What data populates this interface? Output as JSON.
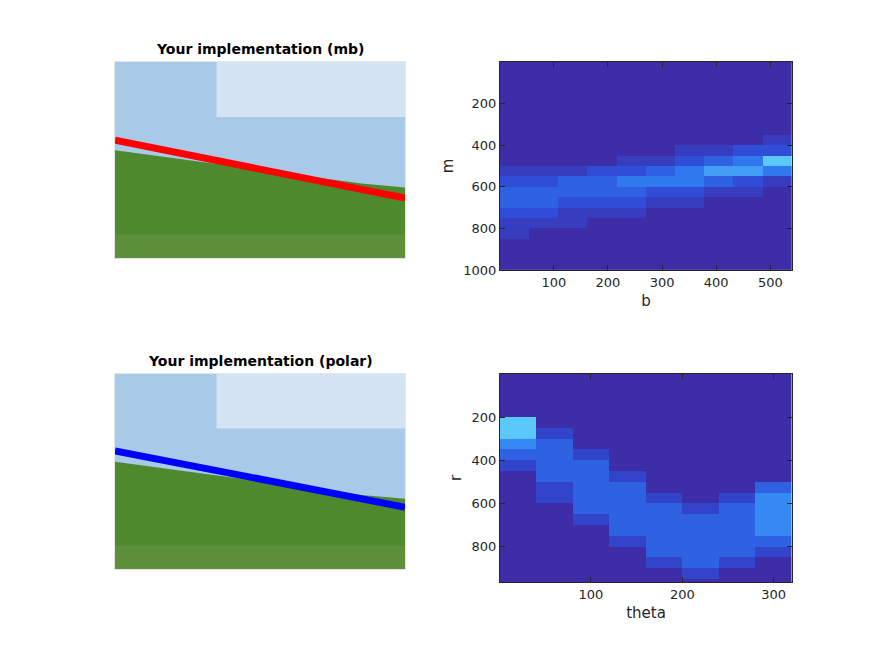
{
  "chart_data": [
    {
      "type": "image",
      "title": "Your implementation (mb)",
      "tick_labels": false,
      "xlim": [
        0,
        540
      ],
      "ylim": [
        363,
        0
      ],
      "x": [
        0,
        540
      ],
      "values": [
        145,
        252
      ],
      "color": "#ff0000"
    },
    {
      "type": "heatmap",
      "xlabel": "b",
      "ylabel": "m",
      "xlim": [
        0.5,
        540
      ],
      "ylim": [
        1000,
        0.5
      ],
      "xticks": [
        100,
        200,
        300,
        400,
        500
      ],
      "yticks": [
        200,
        400,
        600,
        800,
        1000
      ],
      "x": [
        27,
        81,
        135,
        189,
        243,
        297,
        351,
        405,
        459,
        513
      ],
      "y": [
        25,
        75,
        125,
        175,
        225,
        275,
        325,
        375,
        425,
        475,
        525,
        575,
        625,
        675,
        725,
        775,
        825,
        875,
        925,
        975
      ],
      "z": [
        [
          0,
          0,
          0,
          0,
          0,
          0,
          0,
          0,
          0,
          0
        ],
        [
          0,
          0,
          0,
          0,
          0,
          0,
          0,
          0,
          0,
          0
        ],
        [
          0,
          0,
          0,
          0,
          0,
          0,
          0,
          0,
          0,
          0
        ],
        [
          0,
          0,
          0,
          0,
          0,
          0,
          0,
          0,
          0,
          0
        ],
        [
          0,
          0,
          0,
          0,
          0,
          0,
          0,
          0,
          0,
          0
        ],
        [
          0,
          0,
          0,
          0,
          0,
          0,
          0,
          0,
          0,
          0
        ],
        [
          0,
          0,
          0,
          0,
          0,
          0,
          0,
          0,
          0,
          0
        ],
        [
          0,
          0,
          0,
          0,
          0,
          0,
          0,
          0,
          0,
          1
        ],
        [
          0,
          0,
          0,
          0,
          0,
          0,
          1,
          1,
          2,
          2
        ],
        [
          0,
          0,
          0,
          0,
          1,
          1,
          2,
          3,
          4,
          6
        ],
        [
          1,
          1,
          1,
          2,
          2,
          3,
          4,
          5,
          5,
          4
        ],
        [
          2,
          2,
          3,
          3,
          4,
          4,
          4,
          3,
          2,
          1
        ],
        [
          3,
          3,
          3,
          3,
          3,
          2,
          2,
          1,
          1,
          0
        ],
        [
          3,
          3,
          2,
          2,
          2,
          1,
          1,
          0,
          0,
          0
        ],
        [
          2,
          2,
          1,
          1,
          1,
          0,
          0,
          0,
          0,
          0
        ],
        [
          1,
          1,
          1,
          0,
          0,
          0,
          0,
          0,
          0,
          0
        ],
        [
          1,
          0,
          0,
          0,
          0,
          0,
          0,
          0,
          0,
          0
        ],
        [
          0,
          0,
          0,
          0,
          0,
          0,
          0,
          0,
          0,
          0
        ],
        [
          0,
          0,
          0,
          0,
          0,
          0,
          0,
          0,
          0,
          0
        ],
        [
          0,
          0,
          0,
          0,
          0,
          0,
          0,
          0,
          0,
          0
        ]
      ]
    },
    {
      "type": "image",
      "title": "Your implementation (polar)",
      "tick_labels": false,
      "xlim": [
        0,
        540
      ],
      "ylim": [
        363,
        0
      ],
      "x": [
        0,
        540
      ],
      "values": [
        143,
        248
      ],
      "color": "#0000ff"
    },
    {
      "type": "heatmap",
      "xlabel": "theta",
      "ylabel": "r",
      "xlim": [
        0.5,
        320
      ],
      "ylim": [
        965,
        0.5
      ],
      "xticks": [
        100,
        200,
        300
      ],
      "yticks": [
        200,
        400,
        600,
        800
      ],
      "x": [
        20,
        60,
        100,
        140,
        180,
        220,
        260,
        300
      ],
      "y": [
        25,
        75,
        125,
        175,
        225,
        275,
        325,
        375,
        425,
        475,
        525,
        575,
        625,
        675,
        725,
        775,
        825,
        875,
        925,
        975
      ],
      "z": [
        [
          0,
          0,
          0,
          0,
          0,
          0,
          0,
          0
        ],
        [
          0,
          0,
          0,
          0,
          0,
          0,
          0,
          0
        ],
        [
          0,
          0,
          0,
          0,
          0,
          0,
          0,
          0
        ],
        [
          0,
          0,
          0,
          0,
          0,
          0,
          0,
          0
        ],
        [
          4,
          0,
          0,
          0,
          0,
          0,
          0,
          0
        ],
        [
          4,
          1,
          0,
          0,
          0,
          0,
          0,
          0
        ],
        [
          3,
          2,
          0,
          0,
          0,
          0,
          0,
          0
        ],
        [
          2,
          2,
          1,
          0,
          0,
          0,
          0,
          0
        ],
        [
          1,
          2,
          2,
          0,
          0,
          0,
          0,
          0
        ],
        [
          0,
          2,
          2,
          1,
          0,
          0,
          0,
          0
        ],
        [
          0,
          1,
          2,
          2,
          0,
          0,
          0,
          2
        ],
        [
          0,
          1,
          2,
          2,
          1,
          0,
          1,
          3
        ],
        [
          0,
          0,
          2,
          2,
          2,
          1,
          2,
          3
        ],
        [
          0,
          0,
          1,
          2,
          2,
          2,
          2,
          3
        ],
        [
          0,
          0,
          0,
          2,
          2,
          2,
          2,
          3
        ],
        [
          0,
          0,
          0,
          1,
          2,
          2,
          2,
          2
        ],
        [
          0,
          0,
          0,
          0,
          2,
          2,
          2,
          1
        ],
        [
          0,
          0,
          0,
          0,
          1,
          2,
          1,
          0
        ],
        [
          0,
          0,
          0,
          0,
          0,
          1,
          0,
          0
        ],
        [
          0,
          0,
          0,
          0,
          0,
          0,
          0,
          0
        ]
      ]
    }
  ]
}
